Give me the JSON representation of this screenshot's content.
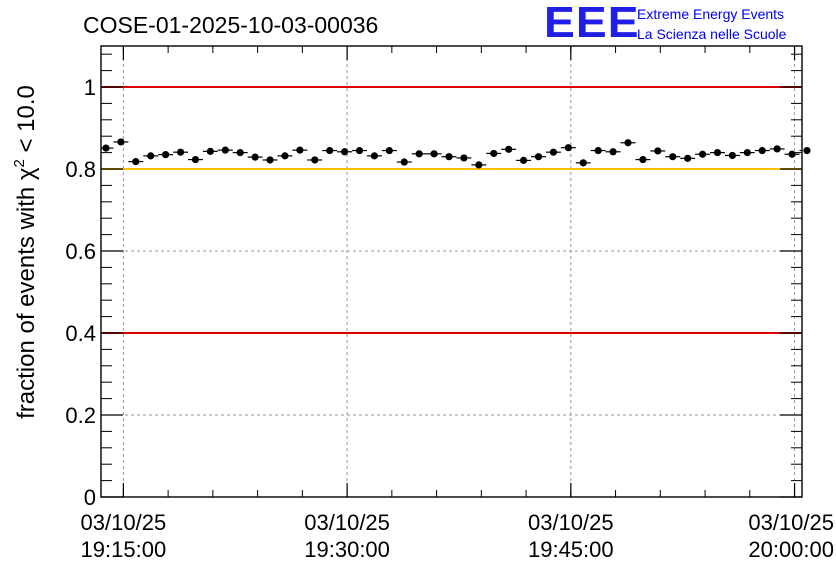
{
  "logo": {
    "mark": "EEE",
    "line1": "Extreme Energy Events",
    "line2": "La Scienza nelle Scuole"
  },
  "colors": {
    "frame": "#000000",
    "grid": "#9a9a9a",
    "red_line": "#dd0000",
    "yellow_line": "#ffc000",
    "markers": "#000000",
    "logo": "#1f1fe6"
  },
  "chart_data": {
    "type": "scatter",
    "title": "COSE-01-2025-10-03-00036",
    "ylabel_prefix": "fraction of events with ",
    "ylabel_symbol": "χ",
    "ylabel_sup": "2",
    "ylabel_suffix": " < 10.0",
    "xlabel": "",
    "ylim": [
      0,
      1.1
    ],
    "yticks": [
      0,
      0.2,
      0.4,
      0.6,
      0.8,
      1
    ],
    "ytick_labels": [
      "0",
      "0.2",
      "0.4",
      "0.6",
      "0.8",
      "1"
    ],
    "xlim": [
      "03/10/25 19:13:30",
      "03/10/25 20:00:30"
    ],
    "xticks": [
      "03/10/25 19:15:00",
      "03/10/25 19:30:00",
      "03/10/25 19:45:00",
      "03/10/25 20:00:00"
    ],
    "xtick_labels": [
      {
        "date": "03/10/25",
        "time": "19:15:00"
      },
      {
        "date": "03/10/25",
        "time": "19:30:00"
      },
      {
        "date": "03/10/25",
        "time": "19:45:00"
      },
      {
        "date": "03/10/25",
        "time": "20:00:00"
      }
    ],
    "grid": true,
    "reference_lines": [
      {
        "y": 1.0,
        "color": "red"
      },
      {
        "y": 0.8,
        "color": "yellow"
      },
      {
        "y": 0.4,
        "color": "red"
      }
    ],
    "x": [
      "19:13:50",
      "19:14:50",
      "19:15:50",
      "19:16:50",
      "19:17:50",
      "19:18:50",
      "19:19:50",
      "19:20:50",
      "19:21:50",
      "19:22:50",
      "19:23:50",
      "19:24:50",
      "19:25:50",
      "19:26:50",
      "19:27:50",
      "19:28:50",
      "19:29:50",
      "19:30:50",
      "19:31:50",
      "19:32:50",
      "19:33:50",
      "19:34:50",
      "19:35:50",
      "19:36:50",
      "19:37:50",
      "19:38:50",
      "19:39:50",
      "19:40:50",
      "19:41:50",
      "19:42:50",
      "19:43:50",
      "19:44:50",
      "19:45:50",
      "19:46:50",
      "19:47:50",
      "19:48:50",
      "19:49:50",
      "19:50:50",
      "19:51:50",
      "19:52:50",
      "19:53:50",
      "19:54:50",
      "19:55:50",
      "19:56:50",
      "19:57:50",
      "19:58:50",
      "19:59:50",
      "20:00:50"
    ],
    "y": [
      0.851,
      0.866,
      0.818,
      0.832,
      0.835,
      0.841,
      0.823,
      0.843,
      0.846,
      0.84,
      0.829,
      0.822,
      0.832,
      0.846,
      0.822,
      0.845,
      0.842,
      0.845,
      0.832,
      0.845,
      0.817,
      0.837,
      0.837,
      0.83,
      0.827,
      0.81,
      0.838,
      0.848,
      0.821,
      0.83,
      0.841,
      0.852,
      0.815,
      0.845,
      0.842,
      0.864,
      0.823,
      0.844,
      0.83,
      0.826,
      0.836,
      0.84,
      0.833,
      0.84,
      0.845,
      0.849,
      0.836,
      0.845
    ],
    "yerr": 0.006,
    "xerr_seconds": 30
  }
}
